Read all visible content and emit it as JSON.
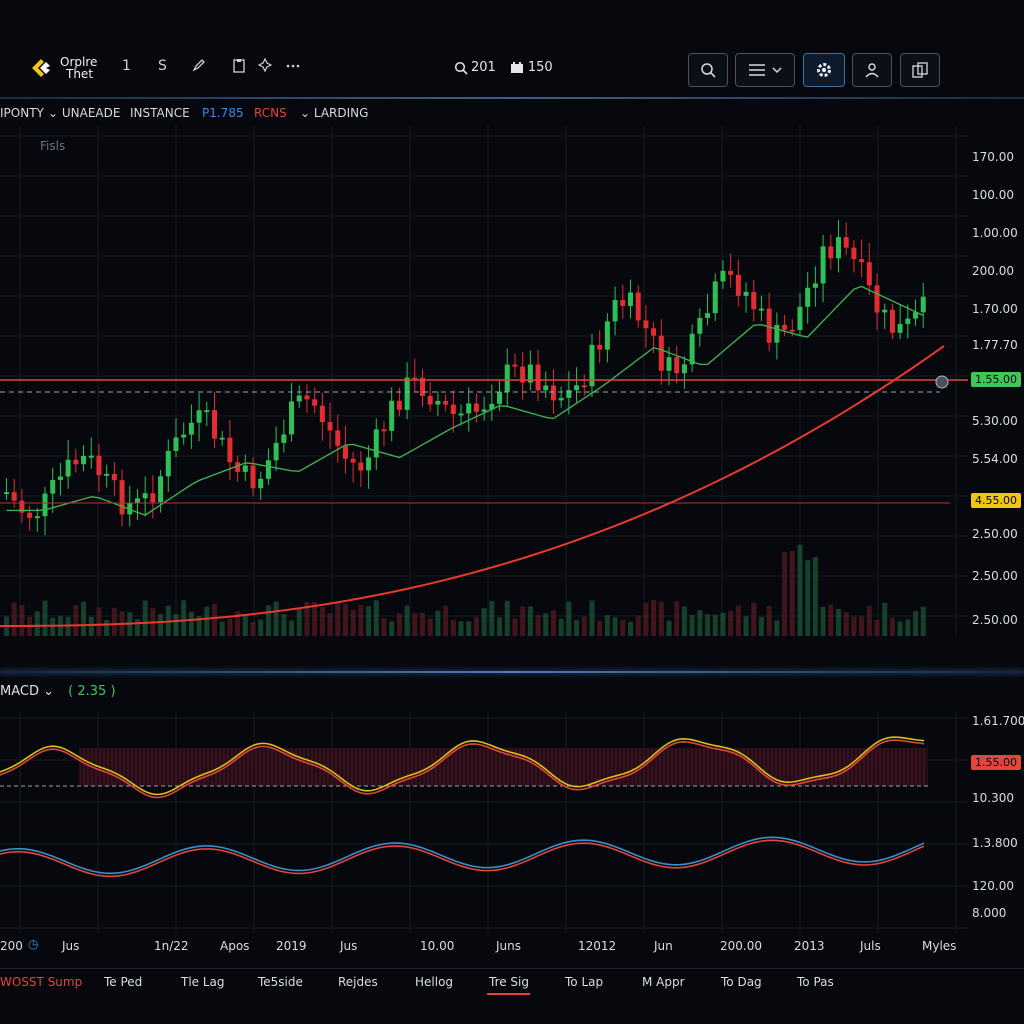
{
  "header": {
    "logo_line1": "Orplre",
    "logo_line2": "Thet",
    "toolbar_items": [
      "1",
      "S"
    ],
    "search_value": "201",
    "counter_value": "150"
  },
  "menubar": {
    "items": [
      {
        "label": "IPONTY",
        "color": "#d6dae2",
        "dropdown": false
      },
      {
        "label": "UNAEADE",
        "color": "#d6dae2",
        "dropdown": true
      },
      {
        "label": "INSTANCE",
        "color": "#d6dae2",
        "dropdown": false
      },
      {
        "label": "P1.785",
        "color": "#3b8de0",
        "dropdown": false
      },
      {
        "label": "RCNS",
        "color": "#e0463a",
        "dropdown": false
      },
      {
        "label": "LARDING",
        "color": "#d6dae2",
        "dropdown": true
      }
    ]
  },
  "main_chart": {
    "panel_label": "Fisls",
    "y_labels": [
      "170.00",
      "100.00",
      "1.00.00",
      "200.00",
      "1.70.00",
      "1.77.70",
      "5.30.00",
      "5.54.00",
      "2.50.00",
      "2.50.00",
      "2.50.00"
    ],
    "current_price_tag": "1.55.00",
    "current_price_color": "#3ec65b",
    "level_price_tag": "4.55.00",
    "level_price_color": "#f0c419"
  },
  "macd": {
    "title": "MACD",
    "value": "( 2.35 )",
    "y_labels": [
      "1.61.700",
      "10.300",
      "1.3.800",
      "120.00",
      "8.000"
    ],
    "tag": "1.55.00",
    "tag_color": "#e0463a"
  },
  "time_axis": {
    "labels": [
      "200",
      "Jus",
      "1n/22",
      "Apos",
      "2019",
      "Jus",
      "10.00",
      "Juns",
      "12012",
      "Jun",
      "200.00",
      "2013",
      "Juls",
      "Myles"
    ]
  },
  "bottom_tabs": {
    "items": [
      "WOSST Sump",
      "Te Ped",
      "Tle Lag",
      "Te5side",
      "Rejdes",
      "Hellog",
      "Tre Sig",
      "To Lap",
      "M Appr",
      "To Dag",
      "To Pas"
    ],
    "active_index": 6
  },
  "colors": {
    "background": "#06080d",
    "up": "#2fbf55",
    "down": "#e32d33",
    "accent_blue": "#3d6aa3",
    "trend": "#e83a2e"
  },
  "chart_data": {
    "type": "line",
    "series": [
      {
        "values": [
          3.2,
          3.5,
          3.1,
          3.8,
          4.2,
          4.0,
          4.6,
          4.3,
          4.9,
          5.4,
          5.1,
          5.8,
          6.6,
          6.2,
          7.1,
          6.8,
          7.9,
          7.4,
          6.9
        ]
      },
      {
        "values": [
          2.6,
          2.8,
          2.9,
          3.0,
          3.2,
          3.4,
          3.6,
          3.8,
          4.0,
          4.2,
          4.5,
          4.8,
          5.1,
          5.4,
          5.7,
          6.0,
          6.3,
          6.5,
          6.7
        ]
      }
    ],
    "grid": true
  }
}
